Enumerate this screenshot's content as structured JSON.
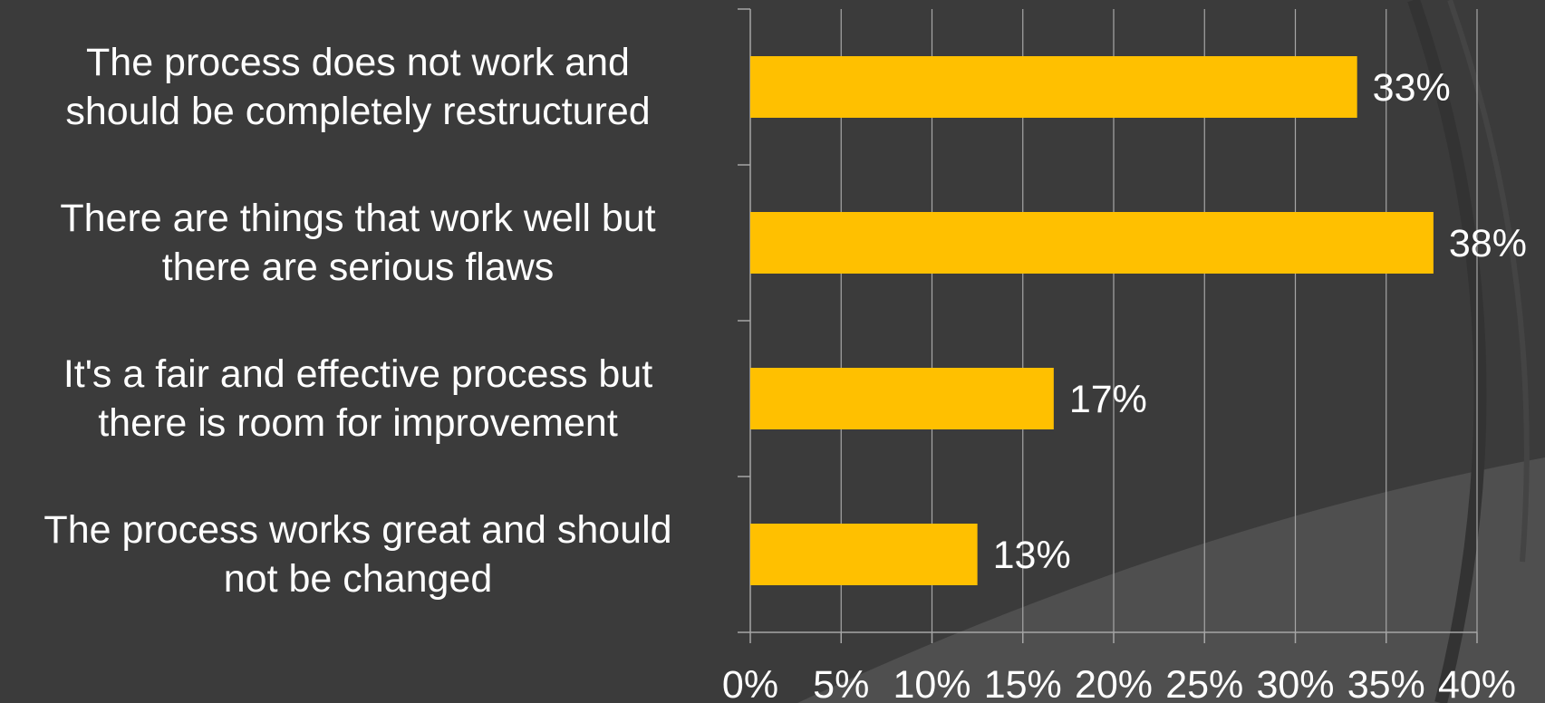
{
  "colors": {
    "background": "#3b3b3b",
    "bar": "#ffc000",
    "text": "#ffffff",
    "grid": "#a6a6a6",
    "decor_arc": "#4f4f4f"
  },
  "chart_data": {
    "type": "bar",
    "orientation": "horizontal",
    "title": "",
    "xlabel": "",
    "ylabel": "",
    "categories": [
      "The process does not work and should be completely restructured",
      "There are things that work well but there are serious flaws",
      "It's a fair and effective process but there is room for improvement",
      "The process works great and should not be changed"
    ],
    "category_lines": [
      [
        "The process does not work and",
        "should be completely restructured"
      ],
      [
        "There are things that work well but",
        "there are serious flaws"
      ],
      [
        "It's a fair and effective process but",
        "there is room for improvement"
      ],
      [
        "The process works great and should",
        "not be changed"
      ]
    ],
    "values": [
      33.4,
      37.6,
      16.7,
      12.5
    ],
    "data_labels": [
      "33%",
      "38%",
      "17%",
      "13%"
    ],
    "xlim": [
      0,
      40
    ],
    "xticks": [
      0,
      5,
      10,
      15,
      20,
      25,
      30,
      35,
      40
    ],
    "xtick_labels": [
      "0%",
      "5%",
      "10%",
      "15%",
      "20%",
      "25%",
      "30%",
      "35%",
      "40%"
    ],
    "grid": true,
    "legend": "none"
  }
}
